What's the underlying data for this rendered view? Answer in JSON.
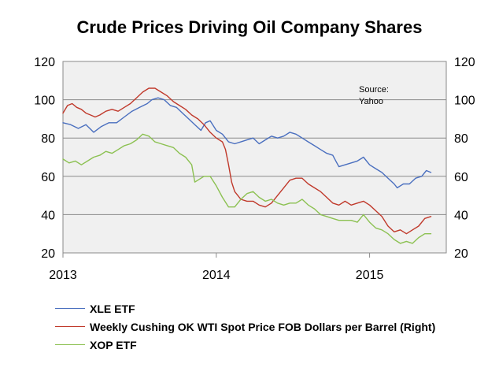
{
  "chart_data": {
    "type": "line",
    "title": "Crude Prices Driving Oil Company Shares",
    "xlabel": "",
    "ylabel": "",
    "x_ticks": [
      "2013",
      "2014",
      "2015"
    ],
    "x_range": [
      2013.0,
      2015.5
    ],
    "y_left_ticks": [
      "120",
      "100",
      "80",
      "60",
      "40",
      "20"
    ],
    "y_right_ticks": [
      "120",
      "100",
      "80",
      "60",
      "40",
      "20"
    ],
    "ylim_left": [
      20,
      120
    ],
    "ylim_right": [
      20,
      120
    ],
    "grid": "horizontal",
    "legend_position": "bottom",
    "annotation": "Source:\nYahoo",
    "series": [
      {
        "name": "XLE ETF",
        "color": "#4a6fbf",
        "axis": "left",
        "points": [
          [
            2013.0,
            88
          ],
          [
            2013.05,
            87
          ],
          [
            2013.1,
            85
          ],
          [
            2013.15,
            87
          ],
          [
            2013.2,
            83
          ],
          [
            2013.25,
            86
          ],
          [
            2013.3,
            88
          ],
          [
            2013.35,
            88
          ],
          [
            2013.4,
            91
          ],
          [
            2013.45,
            94
          ],
          [
            2013.5,
            96
          ],
          [
            2013.55,
            98
          ],
          [
            2013.58,
            100
          ],
          [
            2013.62,
            101
          ],
          [
            2013.66,
            100
          ],
          [
            2013.7,
            97
          ],
          [
            2013.74,
            96
          ],
          [
            2013.78,
            93
          ],
          [
            2013.82,
            90
          ],
          [
            2013.86,
            87
          ],
          [
            2013.9,
            84
          ],
          [
            2013.93,
            88
          ],
          [
            2013.96,
            89
          ],
          [
            2014.0,
            84
          ],
          [
            2014.04,
            82
          ],
          [
            2014.08,
            78
          ],
          [
            2014.12,
            77
          ],
          [
            2014.16,
            78
          ],
          [
            2014.2,
            79
          ],
          [
            2014.24,
            80
          ],
          [
            2014.28,
            77
          ],
          [
            2014.32,
            79
          ],
          [
            2014.36,
            81
          ],
          [
            2014.4,
            80
          ],
          [
            2014.44,
            81
          ],
          [
            2014.48,
            83
          ],
          [
            2014.52,
            82
          ],
          [
            2014.56,
            80
          ],
          [
            2014.6,
            78
          ],
          [
            2014.64,
            76
          ],
          [
            2014.68,
            74
          ],
          [
            2014.72,
            72
          ],
          [
            2014.76,
            71
          ],
          [
            2014.78,
            68
          ],
          [
            2014.8,
            65
          ],
          [
            2014.84,
            66
          ],
          [
            2014.88,
            67
          ],
          [
            2014.92,
            68
          ],
          [
            2014.96,
            70
          ],
          [
            2015.0,
            66
          ],
          [
            2015.04,
            64
          ],
          [
            2015.08,
            62
          ],
          [
            2015.12,
            59
          ],
          [
            2015.16,
            56
          ],
          [
            2015.18,
            54
          ],
          [
            2015.22,
            56
          ],
          [
            2015.26,
            56
          ],
          [
            2015.3,
            59
          ],
          [
            2015.34,
            60
          ],
          [
            2015.37,
            63
          ],
          [
            2015.4,
            62
          ]
        ]
      },
      {
        "name": "Weekly Cushing OK WTI Spot Price FOB Dollars per Barrel (Right)",
        "color": "#c0392b",
        "axis": "right",
        "points": [
          [
            2013.0,
            93
          ],
          [
            2013.03,
            97
          ],
          [
            2013.06,
            98
          ],
          [
            2013.09,
            96
          ],
          [
            2013.12,
            95
          ],
          [
            2013.15,
            93
          ],
          [
            2013.18,
            92
          ],
          [
            2013.21,
            91
          ],
          [
            2013.24,
            92
          ],
          [
            2013.28,
            94
          ],
          [
            2013.32,
            95
          ],
          [
            2013.36,
            94
          ],
          [
            2013.4,
            96
          ],
          [
            2013.44,
            98
          ],
          [
            2013.48,
            101
          ],
          [
            2013.52,
            104
          ],
          [
            2013.56,
            106
          ],
          [
            2013.6,
            106
          ],
          [
            2013.64,
            104
          ],
          [
            2013.68,
            102
          ],
          [
            2013.72,
            99
          ],
          [
            2013.76,
            97
          ],
          [
            2013.8,
            95
          ],
          [
            2013.84,
            92
          ],
          [
            2013.88,
            90
          ],
          [
            2013.92,
            87
          ],
          [
            2013.96,
            83
          ],
          [
            2014.0,
            80
          ],
          [
            2014.04,
            78
          ],
          [
            2014.06,
            74
          ],
          [
            2014.08,
            66
          ],
          [
            2014.1,
            57
          ],
          [
            2014.12,
            52
          ],
          [
            2014.14,
            50
          ],
          [
            2014.16,
            48
          ],
          [
            2014.2,
            47
          ],
          [
            2014.24,
            47
          ],
          [
            2014.28,
            45
          ],
          [
            2014.32,
            44
          ],
          [
            2014.36,
            46
          ],
          [
            2014.4,
            50
          ],
          [
            2014.44,
            54
          ],
          [
            2014.48,
            58
          ],
          [
            2014.52,
            59
          ],
          [
            2014.56,
            59
          ],
          [
            2014.6,
            56
          ],
          [
            2014.64,
            54
          ],
          [
            2014.68,
            52
          ],
          [
            2014.72,
            49
          ],
          [
            2014.76,
            46
          ],
          [
            2014.8,
            45
          ],
          [
            2014.84,
            47
          ],
          [
            2014.88,
            45
          ],
          [
            2014.92,
            46
          ],
          [
            2014.96,
            47
          ],
          [
            2015.0,
            45
          ],
          [
            2015.04,
            42
          ],
          [
            2015.08,
            39
          ],
          [
            2015.12,
            34
          ],
          [
            2015.16,
            31
          ],
          [
            2015.2,
            32
          ],
          [
            2015.24,
            30
          ],
          [
            2015.28,
            32
          ],
          [
            2015.32,
            34
          ],
          [
            2015.36,
            38
          ],
          [
            2015.4,
            39
          ]
        ]
      },
      {
        "name": "XOP ETF",
        "color": "#8cc152",
        "axis": "left",
        "points": [
          [
            2013.0,
            69
          ],
          [
            2013.04,
            67
          ],
          [
            2013.08,
            68
          ],
          [
            2013.12,
            66
          ],
          [
            2013.16,
            68
          ],
          [
            2013.2,
            70
          ],
          [
            2013.24,
            71
          ],
          [
            2013.28,
            73
          ],
          [
            2013.32,
            72
          ],
          [
            2013.36,
            74
          ],
          [
            2013.4,
            76
          ],
          [
            2013.44,
            77
          ],
          [
            2013.48,
            79
          ],
          [
            2013.52,
            82
          ],
          [
            2013.56,
            81
          ],
          [
            2013.6,
            78
          ],
          [
            2013.64,
            77
          ],
          [
            2013.68,
            76
          ],
          [
            2013.72,
            75
          ],
          [
            2013.76,
            72
          ],
          [
            2013.8,
            70
          ],
          [
            2013.84,
            66
          ],
          [
            2013.86,
            57
          ],
          [
            2013.88,
            58
          ],
          [
            2013.92,
            60
          ],
          [
            2013.96,
            60
          ],
          [
            2014.0,
            55
          ],
          [
            2014.04,
            49
          ],
          [
            2014.08,
            44
          ],
          [
            2014.12,
            44
          ],
          [
            2014.16,
            48
          ],
          [
            2014.2,
            51
          ],
          [
            2014.24,
            52
          ],
          [
            2014.28,
            49
          ],
          [
            2014.32,
            47
          ],
          [
            2014.36,
            48
          ],
          [
            2014.4,
            46
          ],
          [
            2014.44,
            45
          ],
          [
            2014.48,
            46
          ],
          [
            2014.52,
            46
          ],
          [
            2014.56,
            48
          ],
          [
            2014.6,
            45
          ],
          [
            2014.64,
            43
          ],
          [
            2014.68,
            40
          ],
          [
            2014.72,
            39
          ],
          [
            2014.76,
            38
          ],
          [
            2014.8,
            37
          ],
          [
            2014.84,
            37
          ],
          [
            2014.88,
            37
          ],
          [
            2014.92,
            36
          ],
          [
            2014.96,
            40
          ],
          [
            2015.0,
            36
          ],
          [
            2015.04,
            33
          ],
          [
            2015.08,
            32
          ],
          [
            2015.12,
            30
          ],
          [
            2015.16,
            27
          ],
          [
            2015.2,
            25
          ],
          [
            2015.24,
            26
          ],
          [
            2015.28,
            25
          ],
          [
            2015.32,
            28
          ],
          [
            2015.36,
            30
          ],
          [
            2015.4,
            30
          ]
        ]
      }
    ]
  },
  "legend": [
    {
      "label": "XLE ETF",
      "color": "#4a6fbf"
    },
    {
      "label": "Weekly Cushing OK WTI Spot Price FOB Dollars per Barrel (Right)",
      "color": "#c0392b"
    },
    {
      "label": "XOP ETF",
      "color": "#8cc152"
    }
  ]
}
